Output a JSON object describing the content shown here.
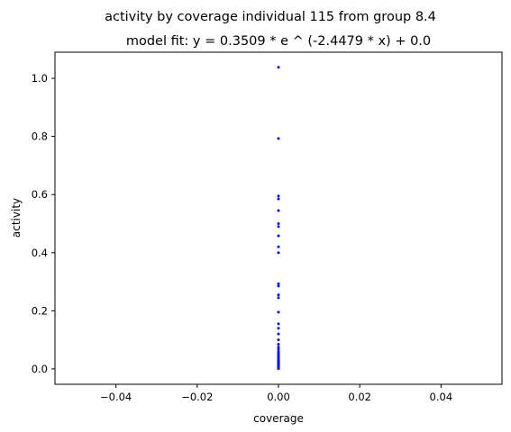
{
  "chart_data": {
    "type": "scatter",
    "title": "activity by coverage individual 115 from group 8.4",
    "subtitle": "model fit: y = 0.3509 * e ^ (-2.4479 * x) + 0.0",
    "xlabel": "coverage",
    "ylabel": "activity",
    "xlim": [
      -0.055,
      0.055
    ],
    "ylim": [
      -0.053,
      1.09
    ],
    "x_ticks": [
      -0.04,
      -0.02,
      0.0,
      0.02,
      0.04
    ],
    "x_tick_labels": [
      "−0.04",
      "−0.02",
      "0.00",
      "0.02",
      "0.04"
    ],
    "y_ticks": [
      0.0,
      0.2,
      0.4,
      0.6,
      0.8,
      1.0
    ],
    "y_tick_labels": [
      "0.0",
      "0.2",
      "0.4",
      "0.6",
      "0.8",
      "1.0"
    ],
    "grid": false,
    "marker_color": "#0000ff",
    "series": [
      {
        "x": [
          0,
          0,
          0,
          0,
          0,
          0,
          0,
          0,
          0,
          0,
          0,
          0,
          0,
          0,
          0,
          0,
          0,
          0,
          0,
          0,
          0,
          0,
          0,
          0,
          0,
          0,
          0,
          0,
          0,
          0,
          0,
          0,
          0,
          0,
          0,
          0,
          0,
          0,
          0,
          0,
          0,
          0,
          0,
          0,
          0,
          0
        ],
        "y": [
          1.038,
          0.793,
          0.595,
          0.585,
          0.545,
          0.5,
          0.49,
          0.458,
          0.42,
          0.4,
          0.293,
          0.285,
          0.255,
          0.245,
          0.195,
          0.155,
          0.14,
          0.12,
          0.1,
          0.085,
          0.075,
          0.068,
          0.06,
          0.055,
          0.05,
          0.045,
          0.04,
          0.035,
          0.03,
          0.027,
          0.024,
          0.021,
          0.018,
          0.016,
          0.014,
          0.012,
          0.01,
          0.009,
          0.008,
          0.007,
          0.006,
          0.005,
          0.004,
          0.003,
          0.002,
          0.001
        ]
      }
    ]
  }
}
